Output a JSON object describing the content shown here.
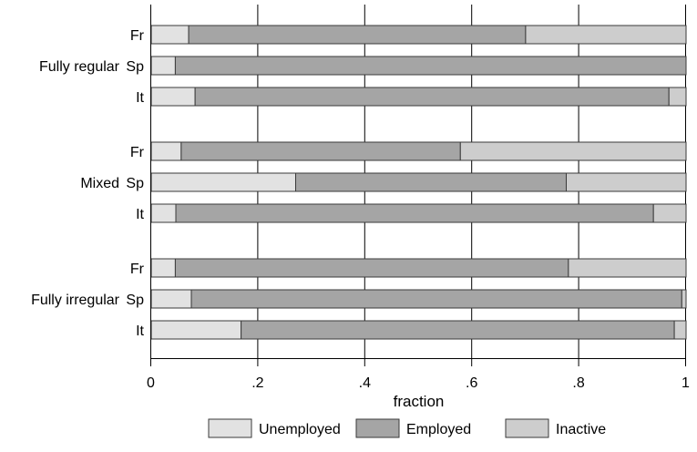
{
  "chart_data": {
    "type": "bar",
    "orientation": "horizontal",
    "stacked": true,
    "xlabel": "fraction",
    "xlim": [
      0,
      1
    ],
    "x_ticks": [
      0,
      0.2,
      0.4,
      0.6,
      0.8,
      1
    ],
    "x_tick_labels": [
      "0",
      ".2",
      ".4",
      ".6",
      ".8",
      "1"
    ],
    "grid": "vertical",
    "legend_position": "bottom",
    "groups": [
      {
        "label": "Fully regular",
        "rows": [
          {
            "label": "Fr",
            "values": [
              0.07,
              0.63,
              0.3
            ]
          },
          {
            "label": "Sp",
            "values": [
              0.045,
              0.955,
              0.0
            ]
          },
          {
            "label": "It",
            "values": [
              0.082,
              0.886,
              0.032
            ]
          }
        ]
      },
      {
        "label": "Mixed",
        "rows": [
          {
            "label": "Fr",
            "values": [
              0.056,
              0.522,
              0.422
            ]
          },
          {
            "label": "Sp",
            "values": [
              0.27,
              0.506,
              0.224
            ]
          },
          {
            "label": "It",
            "values": [
              0.046,
              0.893,
              0.061
            ]
          }
        ]
      },
      {
        "label": "Fully irregular",
        "rows": [
          {
            "label": "Fr",
            "values": [
              0.045,
              0.735,
              0.22
            ]
          },
          {
            "label": "Sp",
            "values": [
              0.075,
              0.917,
              0.008
            ]
          },
          {
            "label": "It",
            "values": [
              0.168,
              0.81,
              0.022
            ]
          }
        ]
      }
    ],
    "series": [
      {
        "name": "Unemployed",
        "color": "#e2e2e2"
      },
      {
        "name": "Employed",
        "color": "#a5a5a5"
      },
      {
        "name": "Inactive",
        "color": "#cdcdcd"
      }
    ]
  }
}
